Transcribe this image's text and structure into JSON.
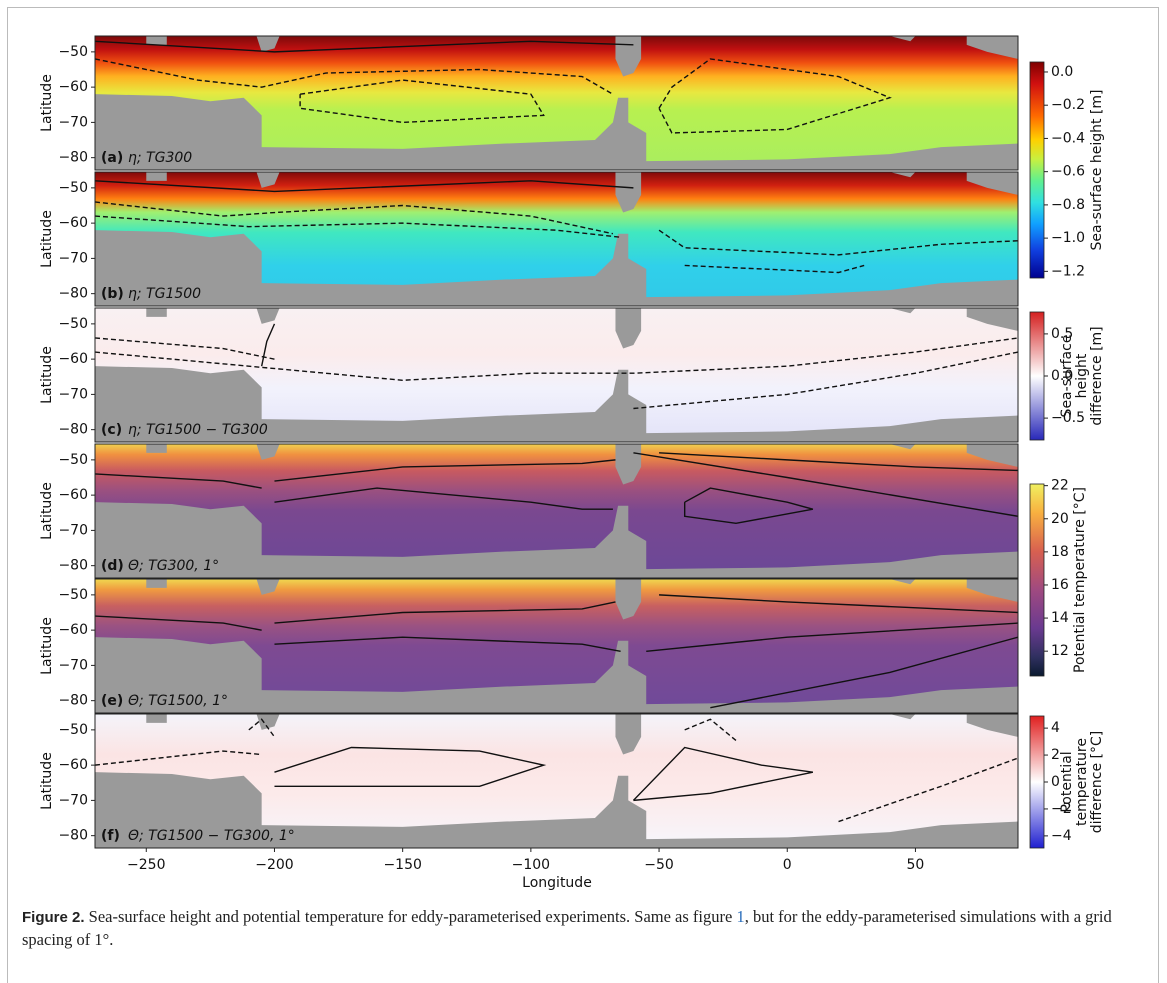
{
  "figure": {
    "panels": [
      {
        "label": "(a)",
        "text": "η; TG300",
        "ylabel": "Latitude"
      },
      {
        "label": "(b)",
        "text": "η; TG1500",
        "ylabel": "Latitude"
      },
      {
        "label": "(c)",
        "text": "η; TG1500 − TG300",
        "ylabel": "Latitude"
      },
      {
        "label": "(d)",
        "text": "Θ; TG300, 1°",
        "ylabel": "Latitude"
      },
      {
        "label": "(e)",
        "text": "Θ; TG1500, 1°",
        "ylabel": "Latitude"
      },
      {
        "label": "(f)",
        "text": "Θ; TG1500 − TG300, 1°",
        "ylabel": "Latitude"
      }
    ],
    "ylim": [
      -83.5,
      -45.5
    ],
    "yticks": [
      {
        "value": -50,
        "label": "−50"
      },
      {
        "value": -60,
        "label": "−60"
      },
      {
        "value": -70,
        "label": "−70"
      },
      {
        "value": -80,
        "label": "−80"
      }
    ],
    "xlim": [
      -270,
      90
    ],
    "xticks": [
      {
        "value": -250,
        "label": "−250"
      },
      {
        "value": -200,
        "label": "−200"
      },
      {
        "value": -150,
        "label": "−150"
      },
      {
        "value": -100,
        "label": "−100"
      },
      {
        "value": -50,
        "label": "−50"
      },
      0,
      50
    ],
    "xlabel": "Longitude",
    "colorbars": [
      {
        "label": [
          "Sea-surface height  [m]"
        ],
        "lim": [
          -1.24,
          0.06
        ],
        "ticks": [
          {
            "value": 0,
            "label": "0.0"
          },
          {
            "value": -0.2,
            "label": "−0.2"
          },
          {
            "value": -0.4,
            "label": "−0.4"
          },
          {
            "value": -0.6,
            "label": "−0.6"
          },
          {
            "value": -0.8,
            "label": "−0.8"
          },
          {
            "value": -1.0,
            "label": "−1.0"
          },
          {
            "value": -1.2,
            "label": "−1.2"
          }
        ]
      },
      {
        "label": [
          "Sea-surface",
          "height",
          "difference  [m]"
        ],
        "lim": [
          -0.76,
          0.76
        ],
        "ticks": [
          0.5,
          {
            "value": 0,
            "label": "0.0"
          },
          {
            "value": -0.5,
            "label": "−0.5"
          }
        ]
      },
      {
        "label": [
          "Potential temperature  [°C]"
        ],
        "lim": [
          10.5,
          22.1
        ],
        "ticks": [
          22,
          20,
          18,
          16,
          14,
          12
        ]
      },
      {
        "label": [
          "Potential",
          "temperature",
          "difference [°C]"
        ],
        "lim": [
          -4.9,
          4.9
        ],
        "ticks": [
          4,
          2,
          0,
          {
            "value": -2,
            "label": "−2"
          },
          {
            "value": -4,
            "label": "−4"
          }
        ]
      }
    ]
  },
  "caption": {
    "label": "Figure 2.",
    "text_before": "Sea-surface height and potential temperature for eddy-parameterised experiments. Same as figure ",
    "link": "1",
    "text_after": ", but for the eddy-parameterised simulations with a grid spacing of 1°."
  }
}
